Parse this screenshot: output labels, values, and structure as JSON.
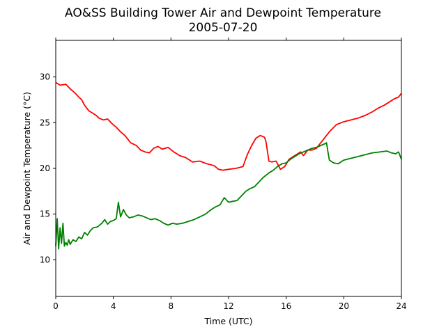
{
  "chart_data": {
    "type": "line",
    "title": "AO&SS Building Tower Air and Dewpoint Temperature",
    "subtitle": "2005-07-20",
    "xlabel": "Time (UTC)",
    "ylabel": "Air and Dewpoint Temperature (°C)",
    "xlim": [
      0,
      24
    ],
    "ylim": [
      6,
      34
    ],
    "xticks": [
      0,
      4,
      8,
      12,
      16,
      20,
      24
    ],
    "yticks": [
      10,
      15,
      20,
      25,
      30
    ],
    "grid": false,
    "legend": "none",
    "series": [
      {
        "color": "#ff0000",
        "x": [
          0,
          0.3,
          0.7,
          1.0,
          1.3,
          1.6,
          1.8,
          2.0,
          2.3,
          2.6,
          2.8,
          3.0,
          3.3,
          3.6,
          3.9,
          4.2,
          4.5,
          4.8,
          5.2,
          5.6,
          5.9,
          6.2,
          6.5,
          6.8,
          7.1,
          7.4,
          7.8,
          8.2,
          8.6,
          9.0,
          9.5,
          10.0,
          10.5,
          11.0,
          11.3,
          11.6,
          12.0,
          12.5,
          13.0,
          13.3,
          13.6,
          13.9,
          14.2,
          14.5,
          14.6,
          14.8,
          15.0,
          15.3,
          15.6,
          15.9,
          16.2,
          16.5,
          16.8,
          17.0,
          17.2,
          17.5,
          17.8,
          18.1,
          18.5,
          19.0,
          19.5,
          20.0,
          20.5,
          21.0,
          21.5,
          22.0,
          22.4,
          22.8,
          23.2,
          23.5,
          23.8,
          24.0
        ],
        "y": [
          29.4,
          29.1,
          29.2,
          28.7,
          28.3,
          27.8,
          27.5,
          26.9,
          26.3,
          26.0,
          25.8,
          25.5,
          25.3,
          25.4,
          24.9,
          24.5,
          24.0,
          23.6,
          22.8,
          22.5,
          22.0,
          21.8,
          21.7,
          22.2,
          22.4,
          22.1,
          22.3,
          21.8,
          21.4,
          21.2,
          20.7,
          20.8,
          20.5,
          20.3,
          19.9,
          19.8,
          19.9,
          20.0,
          20.2,
          21.5,
          22.5,
          23.3,
          23.6,
          23.4,
          22.9,
          20.8,
          20.7,
          20.8,
          19.9,
          20.2,
          21.0,
          21.3,
          21.6,
          21.8,
          21.4,
          22.0,
          22.0,
          22.2,
          23.0,
          24.0,
          24.8,
          25.1,
          25.3,
          25.5,
          25.8,
          26.2,
          26.6,
          26.9,
          27.3,
          27.6,
          27.8,
          28.2
        ]
      },
      {
        "color": "#008000",
        "x": [
          0,
          0.1,
          0.2,
          0.3,
          0.4,
          0.5,
          0.6,
          0.7,
          0.8,
          0.9,
          1.0,
          1.2,
          1.4,
          1.6,
          1.8,
          2.0,
          2.2,
          2.4,
          2.6,
          2.9,
          3.2,
          3.4,
          3.6,
          3.8,
          4.0,
          4.2,
          4.35,
          4.5,
          4.7,
          4.9,
          5.1,
          5.4,
          5.7,
          6.0,
          6.3,
          6.6,
          6.9,
          7.2,
          7.5,
          7.8,
          8.1,
          8.4,
          8.8,
          9.2,
          9.6,
          10.0,
          10.4,
          10.8,
          11.1,
          11.4,
          11.7,
          12.0,
          12.3,
          12.6,
          12.9,
          13.2,
          13.5,
          13.8,
          14.1,
          14.4,
          14.8,
          15.1,
          15.4,
          15.7,
          16.0,
          16.3,
          16.6,
          16.9,
          17.2,
          17.5,
          17.8,
          18.1,
          18.4,
          18.7,
          18.8,
          18.9,
          19.0,
          19.3,
          19.6,
          20.0,
          20.5,
          21.0,
          21.5,
          22.0,
          22.5,
          23.0,
          23.3,
          23.6,
          23.8,
          24.0
        ],
        "y": [
          11.5,
          14.5,
          11.2,
          13.5,
          11.8,
          14.0,
          11.5,
          11.9,
          11.6,
          12.2,
          11.7,
          12.2,
          12.0,
          12.5,
          12.3,
          13.0,
          12.7,
          13.2,
          13.5,
          13.6,
          14.0,
          14.4,
          13.9,
          14.2,
          14.3,
          14.5,
          16.3,
          14.7,
          15.5,
          14.9,
          14.6,
          14.7,
          14.9,
          14.8,
          14.6,
          14.4,
          14.5,
          14.3,
          14.0,
          13.8,
          14.0,
          13.9,
          14.0,
          14.2,
          14.4,
          14.7,
          15.0,
          15.5,
          15.8,
          16.0,
          16.8,
          16.3,
          16.4,
          16.5,
          17.0,
          17.5,
          17.8,
          18.0,
          18.5,
          19.0,
          19.5,
          19.8,
          20.2,
          20.5,
          20.6,
          21.0,
          21.3,
          21.6,
          21.8,
          22.0,
          22.2,
          22.3,
          22.5,
          22.7,
          22.8,
          21.8,
          20.9,
          20.6,
          20.5,
          20.9,
          21.1,
          21.3,
          21.5,
          21.7,
          21.8,
          21.9,
          21.7,
          21.6,
          21.8,
          21.0
        ]
      }
    ]
  }
}
